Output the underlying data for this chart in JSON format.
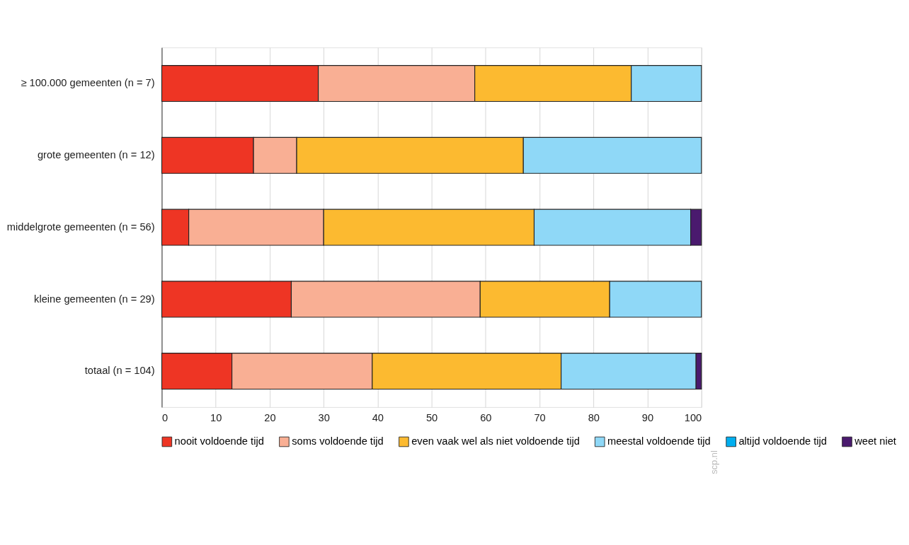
{
  "chart_data": {
    "type": "bar",
    "orientation": "horizontal",
    "stacked": true,
    "categories": [
      "≥ 100.000 gemeenten (n = 7)",
      "grote gemeenten (n = 12)",
      "middelgrote gemeenten (n = 56)",
      "kleine gemeenten (n = 29)",
      "totaal (n = 104)"
    ],
    "series": [
      {
        "name": "nooit voldoende tijd",
        "color": "#ee3524",
        "values": [
          29,
          17,
          5,
          24,
          13
        ]
      },
      {
        "name": "soms voldoende tijd",
        "color": "#f9af94",
        "values": [
          29,
          8,
          25,
          35,
          26
        ]
      },
      {
        "name": "even vaak wel als niet voldoende tijd",
        "color": "#fcba30",
        "values": [
          29,
          42,
          39,
          24,
          35
        ]
      },
      {
        "name": "meestal voldoende tijd",
        "color": "#8fd8f7",
        "values": [
          13,
          33,
          29,
          17,
          25
        ]
      },
      {
        "name": "altijd voldoende tijd",
        "color": "#00aeef",
        "values": [
          0,
          0,
          0,
          0,
          0
        ]
      },
      {
        "name": "weet niet",
        "color": "#4a1a6e",
        "values": [
          0,
          0,
          2,
          0,
          1
        ]
      }
    ],
    "xlim": [
      0,
      100
    ],
    "xticks": [
      0,
      10,
      20,
      30,
      40,
      50,
      60,
      70,
      80,
      90,
      100
    ],
    "grid": true,
    "legend": "bottom",
    "annotations": [
      "scp.nl"
    ]
  }
}
